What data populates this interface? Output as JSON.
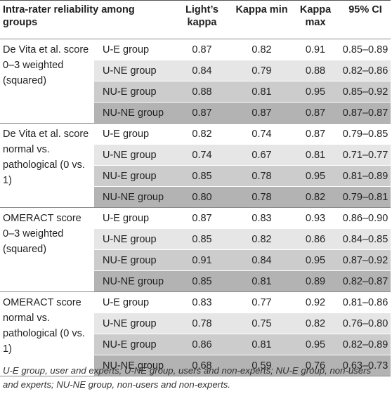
{
  "table": {
    "headers": {
      "col0": "Intra-rater reliability among groups",
      "col2": "Light’s kappa",
      "col3": "Kappa min",
      "col4": "Kappa max",
      "col5": "95% CI"
    },
    "sections": [
      {
        "label": "De Vita et al. score 0–3 weighted (squared)",
        "rows": [
          {
            "group": "U-E group",
            "light": "0.87",
            "min": "0.82",
            "max": "0.91",
            "ci": "0.85–0.89"
          },
          {
            "group": "U-NE group",
            "light": "0.84",
            "min": "0.79",
            "max": "0.88",
            "ci": "0.82–0.86"
          },
          {
            "group": "NU-E group",
            "light": "0.88",
            "min": "0.81",
            "max": "0.95",
            "ci": "0.85–0.92"
          },
          {
            "group": "NU-NE group",
            "light": "0.87",
            "min": "0.87",
            "max": "0.87",
            "ci": "0.87–0.87"
          }
        ]
      },
      {
        "label": "De Vita et al. score normal vs. pathological (0 vs. 1)",
        "rows": [
          {
            "group": "U-E group",
            "light": "0.82",
            "min": "0.74",
            "max": "0.87",
            "ci": "0.79–0.85"
          },
          {
            "group": "U-NE group",
            "light": "0.74",
            "min": "0.67",
            "max": "0.81",
            "ci": "0.71–0.77"
          },
          {
            "group": "NU-E group",
            "light": "0.85",
            "min": "0.78",
            "max": "0.95",
            "ci": "0.81–0.89"
          },
          {
            "group": "NU-NE group",
            "light": "0.80",
            "min": "0.78",
            "max": "0.82",
            "ci": "0.79–0.81"
          }
        ]
      },
      {
        "label": "OMERACT score 0–3 weighted (squared)",
        "rows": [
          {
            "group": "U-E group",
            "light": "0.87",
            "min": "0.83",
            "max": "0.93",
            "ci": "0.86–0.90"
          },
          {
            "group": "U-NE group",
            "light": "0.85",
            "min": "0.82",
            "max": "0.86",
            "ci": "0.84–0.85"
          },
          {
            "group": "NU-E group",
            "light": "0.91",
            "min": "0.84",
            "max": "0.95",
            "ci": "0.87–0.92"
          },
          {
            "group": "NU-NE group",
            "light": "0.85",
            "min": "0.81",
            "max": "0.89",
            "ci": "0.82–0.87"
          }
        ]
      },
      {
        "label": "OMERACT score normal vs. pathological (0 vs. 1)",
        "rows": [
          {
            "group": "U-E group",
            "light": "0.83",
            "min": "0.77",
            "max": "0.92",
            "ci": "0.81–0.86"
          },
          {
            "group": "U-NE group",
            "light": "0.78",
            "min": "0.75",
            "max": "0.82",
            "ci": "0.76–0.80"
          },
          {
            "group": "NU-E group",
            "light": "0.86",
            "min": "0.81",
            "max": "0.95",
            "ci": "0.82–0.89"
          },
          {
            "group": "NU-NE group",
            "light": "0.68",
            "min": "0.59",
            "max": "0.76",
            "ci": "0.63–0.73"
          }
        ]
      }
    ],
    "row_shades": [
      "#ffffff",
      "#e6e6e6",
      "#cccccc",
      "#b3b3b3"
    ]
  },
  "footnote": "U-E group, user and experts; U-NE group, users and non-experts; NU-E group, non-users and experts; NU-NE group, non-users and non-experts."
}
